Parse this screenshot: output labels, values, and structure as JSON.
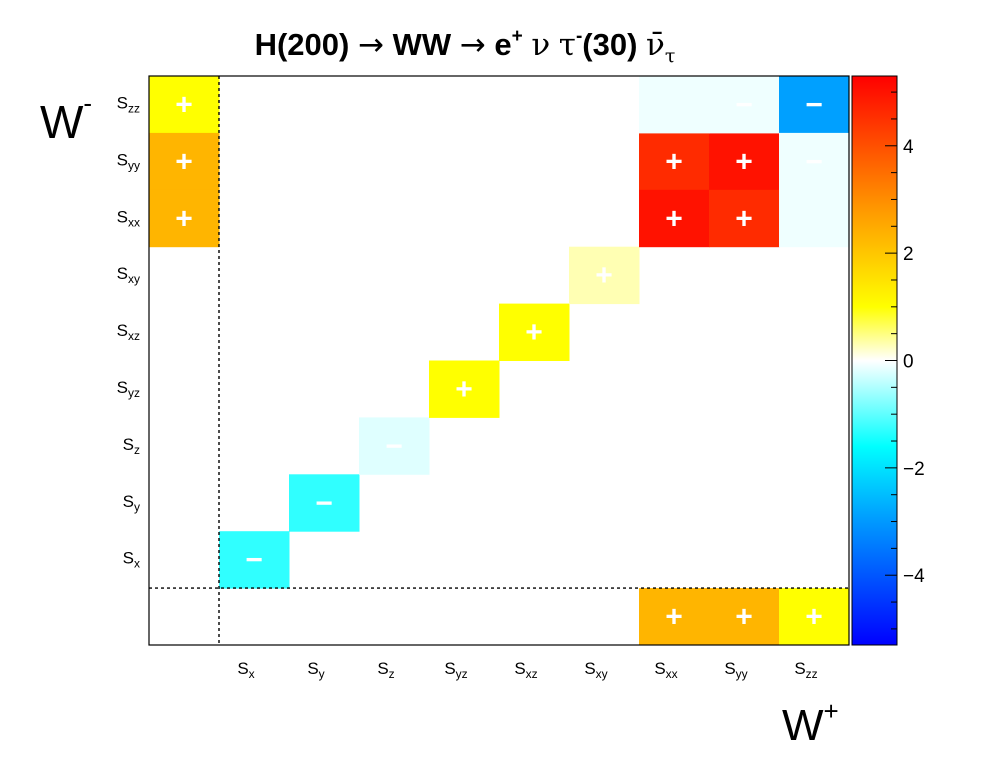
{
  "chart_data": {
    "type": "heatmap",
    "title_parts": {
      "main": "H(200)",
      "arrow": "→",
      "ww": "WW",
      "e": "e",
      "e_sup": "+",
      "nu": "ν",
      "tau": "τ",
      "tau_sup": "-",
      "mass": "(30)",
      "nubar": "ν̄",
      "nubar_sub": "τ"
    },
    "xlabel": {
      "main": "W",
      "sup": "+"
    },
    "ylabel": {
      "main": "W",
      "sup": "-"
    },
    "x_categories": [
      {
        "main": "",
        "sub": ""
      },
      {
        "main": "S",
        "sub": "x"
      },
      {
        "main": "S",
        "sub": "y"
      },
      {
        "main": "S",
        "sub": "z"
      },
      {
        "main": "S",
        "sub": "yz"
      },
      {
        "main": "S",
        "sub": "xz"
      },
      {
        "main": "S",
        "sub": "xy"
      },
      {
        "main": "S",
        "sub": "xx"
      },
      {
        "main": "S",
        "sub": "yy"
      },
      {
        "main": "S",
        "sub": "zz"
      }
    ],
    "y_categories": [
      {
        "main": "",
        "sub": ""
      },
      {
        "main": "S",
        "sub": "x"
      },
      {
        "main": "S",
        "sub": "y"
      },
      {
        "main": "S",
        "sub": "z"
      },
      {
        "main": "S",
        "sub": "yz"
      },
      {
        "main": "S",
        "sub": "xz"
      },
      {
        "main": "S",
        "sub": "xy"
      },
      {
        "main": "S",
        "sub": "xx"
      },
      {
        "main": "S",
        "sub": "yy"
      },
      {
        "main": "S",
        "sub": "zz"
      }
    ],
    "cells": [
      {
        "x": 0,
        "y": 9,
        "value": 1.0,
        "sign": "+"
      },
      {
        "x": 0,
        "y": 8,
        "value": 2.3,
        "sign": "+"
      },
      {
        "x": 0,
        "y": 7,
        "value": 2.3,
        "sign": "+"
      },
      {
        "x": 1,
        "y": 1,
        "value": -1.3,
        "sign": "−"
      },
      {
        "x": 2,
        "y": 2,
        "value": -1.3,
        "sign": "−"
      },
      {
        "x": 3,
        "y": 3,
        "value": -0.2,
        "sign": "−"
      },
      {
        "x": 4,
        "y": 4,
        "value": 1.0,
        "sign": "+"
      },
      {
        "x": 5,
        "y": 5,
        "value": 1.0,
        "sign": "+"
      },
      {
        "x": 6,
        "y": 6,
        "value": 0.3,
        "sign": "+"
      },
      {
        "x": 7,
        "y": 8,
        "value": 4.6,
        "sign": "+"
      },
      {
        "x": 8,
        "y": 8,
        "value": 5.0,
        "sign": "+"
      },
      {
        "x": 7,
        "y": 7,
        "value": 5.0,
        "sign": "+"
      },
      {
        "x": 8,
        "y": 7,
        "value": 4.6,
        "sign": "+"
      },
      {
        "x": 7,
        "y": 9,
        "value": -0.1,
        "sign": ""
      },
      {
        "x": 8,
        "y": 9,
        "value": -0.1,
        "sign": "−"
      },
      {
        "x": 9,
        "y": 9,
        "value": -2.9,
        "sign": "−"
      },
      {
        "x": 9,
        "y": 8,
        "value": -0.1,
        "sign": "−"
      },
      {
        "x": 9,
        "y": 7,
        "value": -0.1,
        "sign": ""
      },
      {
        "x": 7,
        "y": 0,
        "value": 2.3,
        "sign": "+"
      },
      {
        "x": 8,
        "y": 0,
        "value": 2.3,
        "sign": "+"
      },
      {
        "x": 9,
        "y": 0,
        "value": 1.0,
        "sign": "+"
      }
    ],
    "zlim": [
      -5.3,
      5.3
    ],
    "z_ticks": [
      4,
      2,
      0,
      -2,
      -4
    ],
    "z_tick_labels": [
      "4",
      "2",
      "0",
      "−2",
      "−4"
    ],
    "grid": false,
    "dotted_separators": true,
    "colorbar": "right",
    "colors": {
      "max": "#ff0000",
      "orange": "#ff9900",
      "yellow": "#ffff00",
      "zero": "#ffffff",
      "cyan": "#00ffff",
      "blue": "#0099ff",
      "min": "#0000ff"
    }
  }
}
